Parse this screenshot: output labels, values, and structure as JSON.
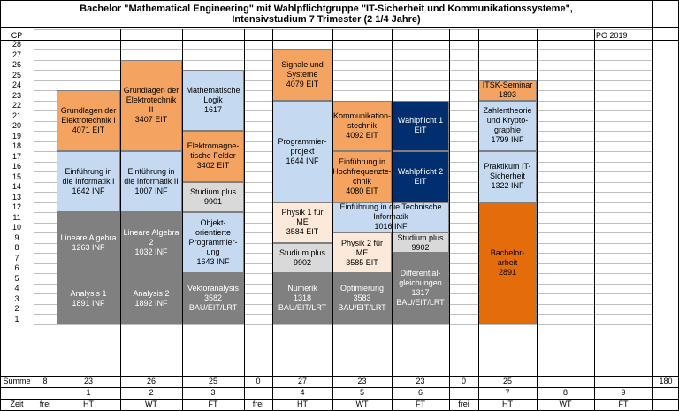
{
  "title": {
    "line1": "Bachelor \"Mathematical Engineering\" mit Wahlpflichtgruppe \"IT-Sicherheit und Kommunikationssysteme\",",
    "line2": "Intensivstudium 7 Trimester (2 1/4 Jahre)"
  },
  "cp_header": "CP",
  "po_label": "PO 2019",
  "cp_rows": [
    "28",
    "27",
    "26",
    "25",
    "24",
    "23",
    "22",
    "21",
    "20",
    "19",
    "18",
    "17",
    "16",
    "15",
    "14",
    "13",
    "12",
    "11",
    "10",
    "9",
    "8",
    "7",
    "6",
    "5",
    "4",
    "3",
    "2",
    "1"
  ],
  "summe_label": "Summe",
  "summe": [
    "8",
    "23",
    "26",
    "25",
    "0",
    "27",
    "23",
    "23",
    "0",
    "25",
    "",
    "",
    ""
  ],
  "total": "180",
  "trimester_numbers": [
    "",
    "1",
    "2",
    "3",
    "",
    "4",
    "5",
    "6",
    "",
    "7",
    "8",
    "9"
  ],
  "zeit_label": "Zeit",
  "zeit": [
    "frei",
    "HT",
    "WT",
    "FT",
    "frei",
    "HT",
    "WT",
    "FT",
    "frei",
    "HT",
    "WT",
    "FT"
  ],
  "blocks": [
    {
      "id": "ge1",
      "text": "Grundlagen der Elektrotechnik I\n4071 EIT"
    },
    {
      "id": "inf1",
      "text": "Einführung in die Informatik I\n1642 INF"
    },
    {
      "id": "la1",
      "text": "Lineare Algebra\n1263 INF"
    },
    {
      "id": "an1",
      "text": "Analysis 1\n1891 INF"
    },
    {
      "id": "ge2",
      "text": "Grundlagen der Elektrotechnik II\n3407 EIT"
    },
    {
      "id": "inf2",
      "text": "Einführung in die Informatik II\n1007 INF"
    },
    {
      "id": "la2",
      "text": "Lineare Algebra 2\n1032 INF"
    },
    {
      "id": "an2",
      "text": "Analysis 2\n1892 INF"
    },
    {
      "id": "ml",
      "text": "Mathematische Logik\n1617"
    },
    {
      "id": "ef",
      "text": "Elektromagne-tische Felder\n3402 EIT"
    },
    {
      "id": "sp1",
      "text": "Studium plus\n9901"
    },
    {
      "id": "oop",
      "text": "Objekt-orientierte Programmier-ung\n1643 INF"
    },
    {
      "id": "va",
      "text": "Vektoranalysis\n3582 BAU/EIT/LRT"
    },
    {
      "id": "sus",
      "text": "Signale und Systeme\n4079 EIT"
    },
    {
      "id": "pp",
      "text": "Programmier-projekt\n1644 INF"
    },
    {
      "id": "ph1",
      "text": "Physik 1 für ME\n3584 EIT"
    },
    {
      "id": "sp2",
      "text": "Studium plus\n9902"
    },
    {
      "id": "num",
      "text": "Numerik\n1318 BAU/EIT/LRT"
    },
    {
      "id": "kt",
      "text": "Kommunikation-stechnik\n4092 EIT"
    },
    {
      "id": "hf",
      "text": "Einführung in Hochfrequenzte-chnik\n4080 EIT"
    },
    {
      "id": "eti",
      "text": "Einführung in die Technische Informatik\n1016 INF"
    },
    {
      "id": "ph2",
      "text": "Physik 2 für ME\n3585 EIT"
    },
    {
      "id": "opt",
      "text": "Optimierung\n3583 BAU/EIT/LRT"
    },
    {
      "id": "wp1",
      "text": "Wahlpflicht 1\nEIT"
    },
    {
      "id": "wp2",
      "text": "Wahlpflicht 2\nEIT"
    },
    {
      "id": "sp3",
      "text": "Studium plus\n9902"
    },
    {
      "id": "dgl",
      "text": "Differential-gleichungen\n1317 BAU/EIT/LRT"
    },
    {
      "id": "itsk",
      "text": "ITSK-Seminar\n1893"
    },
    {
      "id": "zt",
      "text": "Zahlentheorie und Krypto-graphie\n1799 INF"
    },
    {
      "id": "pit",
      "text": "Praktikum IT-Sicherheit\n1322 INF"
    },
    {
      "id": "ba",
      "text": "Bachelor-arbeit\n2891"
    }
  ],
  "colors": {
    "blue": "#c5d9f1",
    "orange": "#f4a460",
    "dark_orange": "#e46c0a",
    "gray": "#808080",
    "light_gray": "#d9d9d9",
    "peach": "#fde9d9",
    "navy": "#002e6e"
  }
}
